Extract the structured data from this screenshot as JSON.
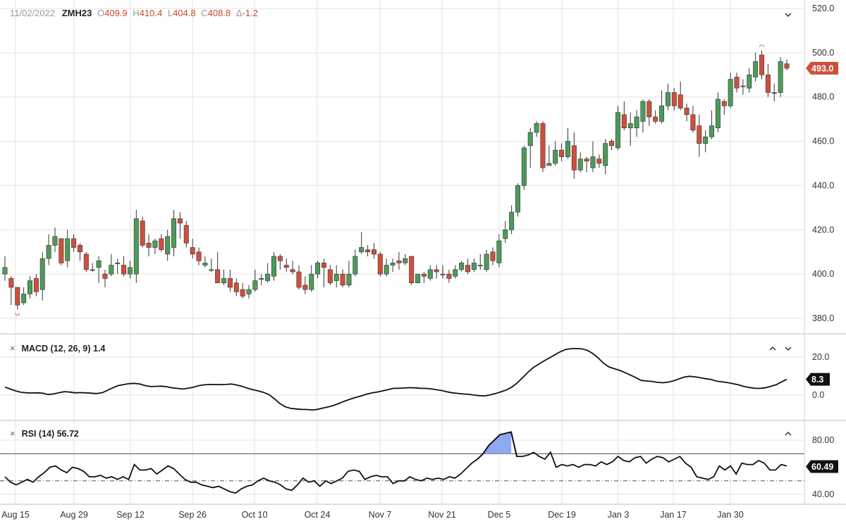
{
  "header": {
    "date": "11/02/2022",
    "symbol": "ZMH23",
    "open_label": "O",
    "open_value": "409.9",
    "high_label": "H",
    "high_value": "410.4",
    "low_label": "L",
    "low_value": "404.8",
    "close_label": "C",
    "close_value": "408.8",
    "change_label": "Δ",
    "change_value": "-1.2"
  },
  "panels": {
    "macd": {
      "title": "MACD (12, 26, 9) 1.4",
      "last_value": "8.3"
    },
    "rsi": {
      "title": "RSI (14) 56.72",
      "last_value": "60.49"
    },
    "price": {
      "last_value": "493.0"
    }
  },
  "icons": {
    "remove_macd": "close-icon",
    "remove_rsi": "close-icon",
    "collapse": "chevron-down-icon",
    "expand": "chevron-up-icon"
  },
  "colors": {
    "up": "#4d9a5a",
    "down": "#cf4f3c",
    "macd_line": "#111111",
    "rsi_line": "#111111",
    "rsi_overbought_fill": "#8fa8f0",
    "rsi_overbought_line": "#2a4fd0",
    "last_price_badge": "#cf4f3c",
    "indicator_badge": "#111111",
    "grid": "#e3e3e3"
  },
  "chart_data": [
    {
      "type": "candlestick",
      "title": "",
      "ylim": [
        375,
        520
      ],
      "y_ticks": [
        "520.0",
        "500.0",
        "480.0",
        "460.0",
        "440.0",
        "420.0",
        "400.0",
        "380.0"
      ],
      "x_ticks": [
        "Aug 15",
        "Aug 29",
        "Sep 12",
        "Sep 26",
        "Oct 10",
        "Oct 24",
        "Nov 7",
        "Nov 21",
        "Dec 5",
        "Dec 19",
        "Jan 3",
        "Jan 17",
        "Jan 30"
      ],
      "grid": true,
      "last_price": 493.0,
      "candles": [
        [
          400,
          403,
          408,
          397
        ],
        [
          398,
          394,
          399,
          386
        ],
        [
          394,
          386,
          391,
          384
        ],
        [
          387,
          391,
          394,
          386
        ],
        [
          391,
          397,
          399,
          389
        ],
        [
          398,
          392,
          400,
          390
        ],
        [
          393,
          407,
          410,
          388
        ],
        [
          407,
          413,
          418,
          404
        ],
        [
          413,
          417,
          421,
          410
        ],
        [
          416,
          405,
          416,
          404
        ],
        [
          406,
          416,
          420,
          403
        ],
        [
          416,
          412,
          418,
          410
        ],
        [
          413,
          410,
          414,
          406
        ],
        [
          409,
          402,
          410,
          401
        ],
        [
          402,
          402,
          405,
          401
        ],
        [
          403,
          406,
          408,
          396
        ],
        [
          400,
          398,
          402,
          394
        ],
        [
          400,
          404,
          409,
          399
        ],
        [
          405,
          405,
          407,
          400
        ],
        [
          404,
          400,
          408,
          399
        ],
        [
          400,
          403,
          406,
          398
        ],
        [
          400,
          425,
          429,
          396
        ],
        [
          424,
          413,
          426,
          412
        ],
        [
          414,
          412,
          418,
          408
        ],
        [
          412,
          415,
          416,
          409
        ],
        [
          416,
          411,
          418,
          410
        ],
        [
          409,
          417,
          420,
          406
        ],
        [
          412,
          425,
          429,
          408
        ],
        [
          425,
          423,
          428,
          416
        ],
        [
          422,
          414,
          424,
          412
        ],
        [
          412,
          409,
          416,
          407
        ],
        [
          410,
          406,
          412,
          404
        ],
        [
          404,
          405,
          408,
          403
        ],
        [
          402,
          402,
          407,
          401
        ],
        [
          402,
          396,
          410,
          396
        ],
        [
          396,
          398,
          402,
          395
        ],
        [
          398,
          394,
          402,
          392
        ],
        [
          396,
          392,
          398,
          390
        ],
        [
          393,
          390,
          396,
          389
        ],
        [
          391,
          393,
          395,
          389
        ],
        [
          393,
          397,
          402,
          392
        ],
        [
          398,
          398,
          400,
          395
        ],
        [
          397,
          400,
          405,
          396
        ],
        [
          399,
          408,
          410,
          397
        ],
        [
          408,
          406,
          409,
          402
        ],
        [
          404,
          403,
          407,
          401
        ],
        [
          402,
          401,
          406,
          400
        ],
        [
          401,
          394,
          404,
          393
        ],
        [
          395,
          393,
          399,
          391
        ],
        [
          393,
          400,
          404,
          392
        ],
        [
          400,
          405,
          406,
          398
        ],
        [
          405,
          403,
          407,
          394
        ],
        [
          402,
          396,
          404,
          395
        ],
        [
          397,
          400,
          404,
          394
        ],
        [
          400,
          395,
          402,
          394
        ],
        [
          395,
          400,
          406,
          394
        ],
        [
          400,
          408,
          411,
          399
        ],
        [
          410,
          412,
          419,
          409
        ],
        [
          411,
          410,
          413,
          408
        ],
        [
          411,
          409,
          414,
          407
        ],
        [
          409,
          400,
          410,
          399
        ],
        [
          400,
          404,
          407,
          399
        ],
        [
          404,
          405,
          407,
          401
        ],
        [
          406,
          405,
          410,
          402
        ],
        [
          405,
          407,
          409,
          404
        ],
        [
          408,
          396,
          408,
          395
        ],
        [
          396,
          400,
          400,
          396
        ],
        [
          400,
          399,
          401,
          396
        ],
        [
          398,
          402,
          404,
          397
        ],
        [
          402,
          401,
          404,
          398
        ],
        [
          400,
          400,
          404,
          398
        ],
        [
          400,
          398,
          402,
          396
        ],
        [
          399,
          402,
          404,
          398
        ],
        [
          402,
          405,
          406,
          401
        ],
        [
          404,
          401,
          407,
          400
        ],
        [
          402,
          405,
          407,
          401
        ],
        [
          404,
          404,
          409,
          402
        ],
        [
          402,
          409,
          411,
          401
        ],
        [
          410,
          406,
          412,
          404
        ],
        [
          405,
          415,
          418,
          403
        ],
        [
          416,
          420,
          424,
          414
        ],
        [
          420,
          428,
          431,
          418
        ],
        [
          428,
          440,
          441,
          426
        ],
        [
          440,
          457,
          458,
          438
        ],
        [
          458,
          464,
          466,
          448
        ],
        [
          464,
          468,
          469,
          462
        ],
        [
          468,
          448,
          469,
          446
        ],
        [
          449,
          450,
          458,
          449
        ],
        [
          450,
          456,
          460,
          449
        ],
        [
          456,
          453,
          459,
          451
        ],
        [
          453,
          460,
          466,
          452
        ],
        [
          458,
          447,
          464,
          443
        ],
        [
          447,
          452,
          455,
          446
        ],
        [
          452,
          451,
          453,
          446
        ],
        [
          448,
          453,
          460,
          446
        ],
        [
          452,
          450,
          454,
          448
        ],
        [
          449,
          459,
          461,
          445
        ],
        [
          460,
          458,
          461,
          456
        ],
        [
          457,
          473,
          476,
          456
        ],
        [
          472,
          466,
          478,
          465
        ],
        [
          466,
          468,
          473,
          458
        ],
        [
          466,
          471,
          474,
          462
        ],
        [
          469,
          478,
          479,
          464
        ],
        [
          478,
          471,
          479,
          467
        ],
        [
          471,
          469,
          474,
          468
        ],
        [
          469,
          476,
          483,
          468
        ],
        [
          476,
          482,
          486,
          474
        ],
        [
          482,
          476,
          484,
          474
        ],
        [
          481,
          475,
          487,
          474
        ],
        [
          475,
          472,
          477,
          469
        ],
        [
          472,
          465,
          476,
          464
        ],
        [
          467,
          459,
          472,
          453
        ],
        [
          459,
          462,
          465,
          455
        ],
        [
          462,
          467,
          474,
          461
        ],
        [
          466,
          479,
          482,
          464
        ],
        [
          478,
          476,
          479,
          472
        ],
        [
          476,
          488,
          491,
          475
        ],
        [
          489,
          484,
          491,
          482
        ],
        [
          485,
          485,
          488,
          481
        ],
        [
          484,
          490,
          493,
          482
        ],
        [
          489,
          496,
          500,
          487
        ],
        [
          499,
          490,
          501,
          488
        ],
        [
          490,
          482,
          495,
          480
        ],
        [
          482,
          482,
          486,
          478
        ],
        [
          482,
          496,
          498,
          480
        ],
        [
          495,
          493,
          497,
          492
        ]
      ]
    },
    {
      "type": "line",
      "title": "MACD (12, 26, 9) 1.4",
      "ylim": [
        -10,
        28
      ],
      "y_ticks": [
        "20.0",
        "0.0"
      ],
      "last_value": 8.3,
      "values": [
        4.2,
        3.2,
        2.2,
        1.5,
        1.2,
        1.1,
        1.2,
        1.0,
        0.3,
        0.6,
        1.2,
        1.8,
        1.6,
        1.2,
        1.3,
        1.2,
        1.0,
        0.8,
        1.2,
        2.5,
        3.8,
        5.0,
        5.5,
        6.0,
        6.2,
        5.8,
        5.0,
        4.5,
        4.6,
        4.7,
        4.4,
        3.8,
        3.5,
        3.2,
        3.6,
        4.2,
        5.0,
        5.4,
        5.6,
        5.5,
        5.5,
        5.6,
        5.8,
        5.3,
        4.6,
        3.6,
        2.8,
        2.2,
        1.4,
        0.2,
        -2.0,
        -4.5,
        -6.2,
        -7.0,
        -7.3,
        -7.5,
        -7.6,
        -7.8,
        -7.5,
        -6.8,
        -6.2,
        -5.4,
        -4.3,
        -3.2,
        -2.2,
        -1.3,
        -0.5,
        0.4,
        1.1,
        1.6,
        2.2,
        2.8,
        3.5,
        3.6,
        3.7,
        3.9,
        3.8,
        3.6,
        3.5,
        3.3,
        2.8,
        2.4,
        1.7,
        1.2,
        0.9,
        0.6,
        0.4,
        0.0,
        -0.3,
        -0.4,
        0.1,
        0.8,
        1.7,
        2.7,
        4.2,
        6.4,
        9.1,
        12.0,
        14.5,
        16.3,
        18.0,
        19.6,
        21.2,
        22.8,
        24.0,
        24.4,
        24.5,
        24.3,
        23.6,
        21.9,
        19.6,
        16.8,
        14.8,
        13.9,
        13.0,
        11.8,
        10.5,
        9.2,
        7.7,
        7.4,
        7.2,
        6.7,
        6.5,
        6.8,
        7.5,
        8.5,
        9.5,
        9.9,
        9.6,
        9.1,
        8.6,
        8.2,
        7.3,
        7.0,
        6.6,
        6.0,
        5.4,
        4.6,
        4.0,
        3.6,
        3.5,
        3.8,
        4.6,
        5.4,
        6.9,
        8.3
      ]
    },
    {
      "type": "line",
      "title": "RSI (14) 56.72",
      "ylim": [
        36,
        90
      ],
      "y_ticks": [
        "80.00",
        "40.00"
      ],
      "levels": [
        70,
        50
      ],
      "last_value": 60.49,
      "values": [
        53,
        49,
        47,
        49,
        51,
        49,
        53,
        56,
        60,
        61,
        58,
        56,
        60,
        59,
        57,
        53,
        53,
        54,
        52,
        53,
        51,
        53,
        51,
        62,
        58,
        58,
        59,
        55,
        58,
        61,
        59,
        55,
        51,
        49,
        49,
        47,
        46,
        45,
        46,
        44,
        42,
        41,
        44,
        46,
        47,
        50,
        52,
        50,
        49,
        47,
        44,
        43,
        47,
        52,
        49,
        50,
        46,
        50,
        48,
        50,
        52,
        57,
        58,
        57,
        51,
        53,
        54,
        53,
        53,
        48,
        50,
        50,
        53,
        51,
        50,
        52,
        51,
        52,
        51,
        53,
        52,
        55,
        59,
        63,
        66,
        70,
        76,
        80,
        84,
        85,
        86,
        68,
        68,
        69,
        71,
        68,
        66,
        71,
        60,
        62,
        61,
        62,
        60,
        62,
        62,
        61,
        64,
        62,
        64,
        68,
        65,
        64,
        67,
        68,
        63,
        66,
        68,
        67,
        64,
        66,
        68,
        63,
        60,
        53,
        52,
        51,
        53,
        61,
        58,
        61,
        55,
        63,
        62,
        62,
        65,
        63,
        58,
        58,
        62,
        61
      ]
    }
  ]
}
